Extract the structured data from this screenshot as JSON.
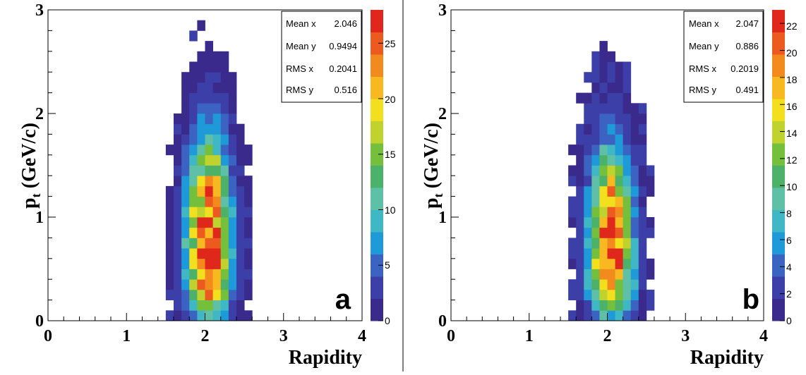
{
  "chart_data": [
    {
      "type": "heatmap",
      "panel_label": "a",
      "xlabel": "Rapidity",
      "ylabel_main": "p",
      "ylabel_sub": "t",
      "ylabel_unit": "(GeV/c)",
      "xlim": [
        0,
        4
      ],
      "ylim": [
        0,
        3
      ],
      "x_ticks": [
        "0",
        "1",
        "2",
        "3",
        "4"
      ],
      "y_ticks": [
        "0",
        "1",
        "2",
        "3"
      ],
      "grid": false,
      "stats": [
        {
          "label": "Mean x",
          "value": "2.046"
        },
        {
          "label": "Mean y",
          "value": "0.9494"
        },
        {
          "label": "RMS x",
          "value": "0.2041"
        },
        {
          "label": "RMS y",
          "value": "0.516"
        }
      ],
      "colorbar": {
        "min": 0,
        "max": 28,
        "ticks": [
          "0",
          "5",
          "10",
          "15",
          "20",
          "25"
        ],
        "tick_values": [
          0,
          5,
          10,
          15,
          20,
          25
        ]
      },
      "distribution": {
        "mean_x": 2.046,
        "mean_y": 0.9494,
        "rms_x": 0.2041,
        "rms_y": 0.516,
        "peak": 28,
        "bin_x": 0.1,
        "bin_y": 0.1,
        "seed": 11
      }
    },
    {
      "type": "heatmap",
      "panel_label": "b",
      "xlabel": "Rapidity",
      "ylabel_main": "p",
      "ylabel_sub": "t",
      "ylabel_unit": "(GeV/c)",
      "xlim": [
        0,
        4
      ],
      "ylim": [
        0,
        3
      ],
      "x_ticks": [
        "0",
        "1",
        "2",
        "3",
        "4"
      ],
      "y_ticks": [
        "0",
        "1",
        "2",
        "3"
      ],
      "grid": false,
      "stats": [
        {
          "label": "Mean x",
          "value": "2.047"
        },
        {
          "label": "Mean y",
          "value": "0.886"
        },
        {
          "label": "RMS x",
          "value": "0.2019"
        },
        {
          "label": "RMS y",
          "value": "0.491"
        }
      ],
      "colorbar": {
        "min": 0,
        "max": 23,
        "ticks": [
          "0",
          "2",
          "4",
          "6",
          "8",
          "10",
          "12",
          "14",
          "16",
          "18",
          "20",
          "22"
        ],
        "tick_values": [
          0,
          2,
          4,
          6,
          8,
          10,
          12,
          14,
          16,
          18,
          20,
          22
        ]
      },
      "distribution": {
        "mean_x": 2.047,
        "mean_y": 0.886,
        "rms_x": 0.2019,
        "rms_y": 0.491,
        "peak": 23,
        "bin_x": 0.1,
        "bin_y": 0.1,
        "seed": 29
      }
    }
  ]
}
